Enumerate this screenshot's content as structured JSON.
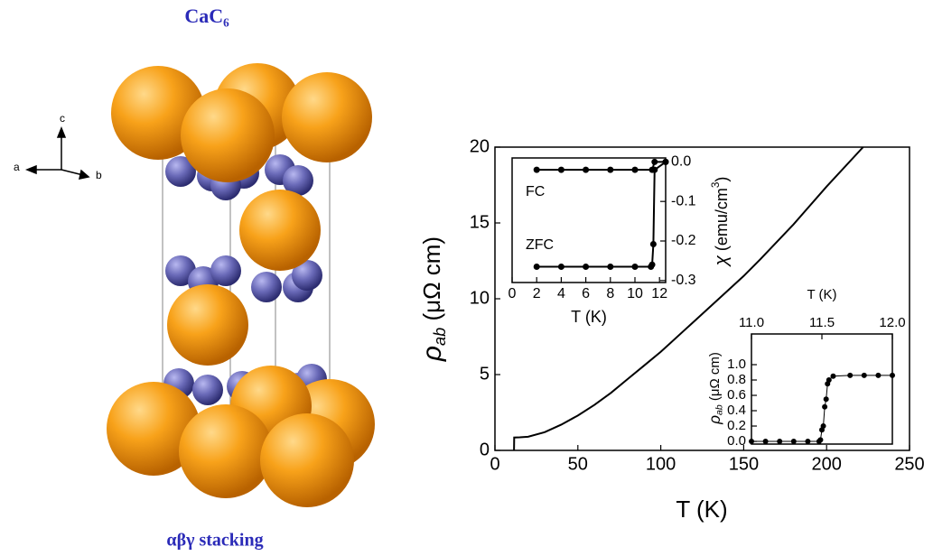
{
  "structure": {
    "title": "CaC₆",
    "caption": "αβγ stacking",
    "axes": {
      "a": "a",
      "b": "b",
      "c": "c"
    }
  },
  "chart_data": [
    {
      "type": "line",
      "xlabel": "T (K)",
      "ylabel": {
        "symbol": "ρ",
        "subscript": "ab",
        "unit": " (μΩ cm)"
      },
      "xlim": [
        0,
        250
      ],
      "ylim": [
        0,
        20
      ],
      "xticks": [
        0,
        50,
        100,
        150,
        200,
        250
      ],
      "yticks": [
        0,
        5,
        10,
        15,
        20
      ],
      "series": [
        {
          "color": "#000000",
          "x": [
            11.5,
            11.6,
            15,
            20,
            30,
            40,
            50,
            60,
            70,
            80,
            90,
            100,
            120,
            140,
            150,
            160,
            180,
            200,
            222
          ],
          "values": [
            0,
            0.85,
            0.86,
            0.9,
            1.2,
            1.7,
            2.3,
            3.0,
            3.8,
            4.7,
            5.6,
            6.5,
            8.5,
            10.5,
            11.5,
            12.6,
            14.9,
            17.4,
            20
          ]
        }
      ]
    },
    {
      "type": "line",
      "xlabel": "T (K)",
      "ylabel": {
        "symbol": "χ",
        "unit": " (emu/cm",
        "superscript": "3",
        "close": ")"
      },
      "xlim": [
        0,
        12.5
      ],
      "ylim": [
        -0.305,
        0.01
      ],
      "xticks": [
        0,
        2,
        4,
        6,
        8,
        10,
        12
      ],
      "yticks": [
        {
          "value": 0,
          "label": "0.0"
        },
        {
          "value": -0.1,
          "label": "-0.1"
        },
        {
          "value": -0.2,
          "label": "-0.2"
        },
        {
          "value": -0.3,
          "label": "-0.3"
        }
      ],
      "series": [
        {
          "name": "FC",
          "color": "#000000",
          "x": [
            2,
            4,
            6,
            8,
            10,
            11.4,
            11.6,
            12.5
          ],
          "values": [
            -0.02,
            -0.02,
            -0.02,
            -0.02,
            -0.02,
            -0.02,
            0,
            0
          ]
        },
        {
          "name": "ZFC",
          "color": "#000000",
          "x": [
            2,
            4,
            6,
            8,
            10,
            11.3,
            11.4,
            11.5,
            11.6,
            12.5
          ],
          "values": [
            -0.265,
            -0.265,
            -0.265,
            -0.265,
            -0.265,
            -0.265,
            -0.26,
            -0.208,
            -0.02,
            0
          ]
        }
      ]
    },
    {
      "type": "line",
      "xlabel": "T (K)",
      "ylabel": {
        "symbol": "ρ",
        "subscript": "ab",
        "unit": " (μΩ cm)"
      },
      "xlim": [
        11,
        12
      ],
      "ylim": [
        -0.035,
        1.4
      ],
      "xticks": [
        {
          "value": 11,
          "label": "11.0"
        },
        {
          "value": 11.5,
          "label": "11.5"
        },
        {
          "value": 12,
          "label": "12.0"
        }
      ],
      "yticks": [
        {
          "value": 0,
          "label": "0.0"
        },
        {
          "value": 0.2,
          "label": "0.2"
        },
        {
          "value": 0.4,
          "label": "0.4"
        },
        {
          "value": 0.6,
          "label": "0.6"
        },
        {
          "value": 0.8,
          "label": "0.8"
        },
        {
          "value": 1,
          "label": "1.0"
        }
      ],
      "series": [
        {
          "color": "#000000",
          "x": [
            11,
            11.1,
            11.2,
            11.3,
            11.4,
            11.48,
            11.49,
            11.5,
            11.51,
            11.52,
            11.53,
            11.54,
            11.55,
            11.58,
            11.7,
            11.8,
            11.9,
            12
          ],
          "values": [
            0,
            0,
            0,
            0,
            0,
            0,
            0.02,
            0.15,
            0.2,
            0.45,
            0.55,
            0.75,
            0.8,
            0.85,
            0.86,
            0.86,
            0.86,
            0.86
          ]
        }
      ]
    }
  ]
}
